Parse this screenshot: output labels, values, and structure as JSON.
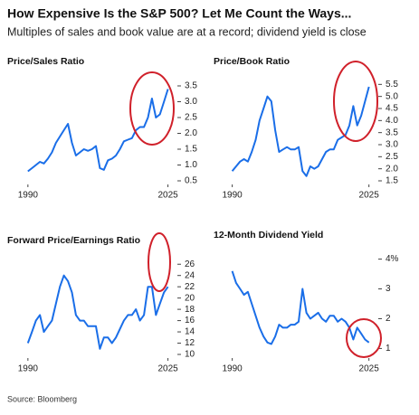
{
  "title": "How Expensive Is the S&P 500? Let Me Count the Ways...",
  "subtitle": "Multiples of sales and book value are at a record; dividend yield is close",
  "source": "Source: Bloomberg",
  "chart_data": [
    {
      "type": "line",
      "title": "Price/Sales Ratio",
      "color": "#1a6ee8",
      "x": [
        1990,
        1991,
        1992,
        1993,
        1994,
        1995,
        1996,
        1997,
        1998,
        1999,
        2000,
        2001,
        2002,
        2003,
        2004,
        2005,
        2006,
        2007,
        2008,
        2009,
        2010,
        2011,
        2012,
        2013,
        2014,
        2015,
        2016,
        2017,
        2018,
        2019,
        2020,
        2021,
        2022,
        2023,
        2024,
        2025
      ],
      "values": [
        0.8,
        0.9,
        1.0,
        1.1,
        1.05,
        1.2,
        1.4,
        1.7,
        1.9,
        2.1,
        2.3,
        1.7,
        1.3,
        1.4,
        1.5,
        1.45,
        1.5,
        1.6,
        0.9,
        0.85,
        1.15,
        1.2,
        1.3,
        1.5,
        1.75,
        1.8,
        1.85,
        2.1,
        2.2,
        2.2,
        2.5,
        3.1,
        2.5,
        2.6,
        3.0,
        3.4
      ],
      "xlim": [
        1988,
        2026
      ],
      "xticks": [
        1990,
        2025
      ],
      "ylim": [
        0.5,
        3.7
      ],
      "yticks": [
        0.5,
        {
          "value": 1,
          "label": "1.0"
        },
        1.5,
        {
          "value": 2,
          "label": "2.0"
        },
        2.5,
        {
          "value": 3,
          "label": "3.0"
        },
        3.5
      ]
    },
    {
      "type": "line",
      "title": "Price/Book Ratio",
      "color": "#1a6ee8",
      "x": [
        1990,
        1991,
        1992,
        1993,
        1994,
        1995,
        1996,
        1997,
        1998,
        1999,
        2000,
        2001,
        2002,
        2003,
        2004,
        2005,
        2006,
        2007,
        2008,
        2009,
        2010,
        2011,
        2012,
        2013,
        2014,
        2015,
        2016,
        2017,
        2018,
        2019,
        2020,
        2021,
        2022,
        2023,
        2024,
        2025
      ],
      "values": [
        1.9,
        2.1,
        2.3,
        2.4,
        2.3,
        2.7,
        3.2,
        4.0,
        4.5,
        5.0,
        4.8,
        3.6,
        2.7,
        2.8,
        2.9,
        2.8,
        2.8,
        2.9,
        1.9,
        1.7,
        2.1,
        2.0,
        2.1,
        2.4,
        2.7,
        2.8,
        2.8,
        3.2,
        3.3,
        3.4,
        3.8,
        4.6,
        3.8,
        4.2,
        4.8,
        5.4
      ],
      "xlim": [
        1988,
        2026
      ],
      "xticks": [
        1990,
        2025
      ],
      "ylim": [
        1.5,
        5.7
      ],
      "yticks": [
        1.5,
        {
          "value": 2,
          "label": "2.0"
        },
        2.5,
        {
          "value": 3,
          "label": "3.0"
        },
        3.5,
        {
          "value": 4,
          "label": "4.0"
        },
        4.5,
        {
          "value": 5,
          "label": "5.0"
        },
        5.5
      ]
    },
    {
      "type": "line",
      "title": "Forward Price/Earnings Ratio",
      "color": "#1a6ee8",
      "x": [
        1990,
        1991,
        1992,
        1993,
        1994,
        1995,
        1996,
        1997,
        1998,
        1999,
        2000,
        2001,
        2002,
        2003,
        2004,
        2005,
        2006,
        2007,
        2008,
        2009,
        2010,
        2011,
        2012,
        2013,
        2014,
        2015,
        2016,
        2017,
        2018,
        2019,
        2020,
        2021,
        2022,
        2023,
        2024,
        2025
      ],
      "values": [
        12,
        14,
        16,
        17,
        14,
        15,
        16,
        19,
        22,
        24,
        23,
        21,
        17,
        16,
        16,
        15,
        15,
        15,
        11,
        13,
        13,
        12,
        13,
        14.5,
        16,
        17,
        17,
        18,
        16,
        17,
        22,
        22,
        17,
        19,
        21,
        22
      ],
      "xlim": [
        1988,
        2026
      ],
      "xticks": [
        1990,
        2025
      ],
      "ylim": [
        10,
        27
      ],
      "yticks": [
        10,
        12,
        14,
        16,
        18,
        20,
        22,
        24,
        26
      ]
    },
    {
      "type": "line",
      "title": "12-Month Dividend Yield",
      "color": "#1a6ee8",
      "x": [
        1990,
        1991,
        1992,
        1993,
        1994,
        1995,
        1996,
        1997,
        1998,
        1999,
        2000,
        2001,
        2002,
        2003,
        2004,
        2005,
        2006,
        2007,
        2008,
        2009,
        2010,
        2011,
        2012,
        2013,
        2014,
        2015,
        2016,
        2017,
        2018,
        2019,
        2020,
        2021,
        2022,
        2023,
        2024,
        2025
      ],
      "values": [
        3.6,
        3.2,
        3.0,
        2.8,
        2.9,
        2.5,
        2.1,
        1.7,
        1.4,
        1.2,
        1.15,
        1.4,
        1.8,
        1.7,
        1.7,
        1.8,
        1.8,
        1.9,
        3.0,
        2.2,
        2.0,
        2.1,
        2.2,
        2.0,
        1.9,
        2.1,
        2.1,
        1.9,
        2.0,
        1.9,
        1.7,
        1.3,
        1.7,
        1.5,
        1.3,
        1.2
      ],
      "xlim": [
        1988,
        2026
      ],
      "xticks": [
        1990,
        2025
      ],
      "ylim": [
        0.8,
        4.2
      ],
      "yticks": [
        1,
        2,
        3,
        {
          "value": 4,
          "label": "4%"
        }
      ]
    }
  ]
}
